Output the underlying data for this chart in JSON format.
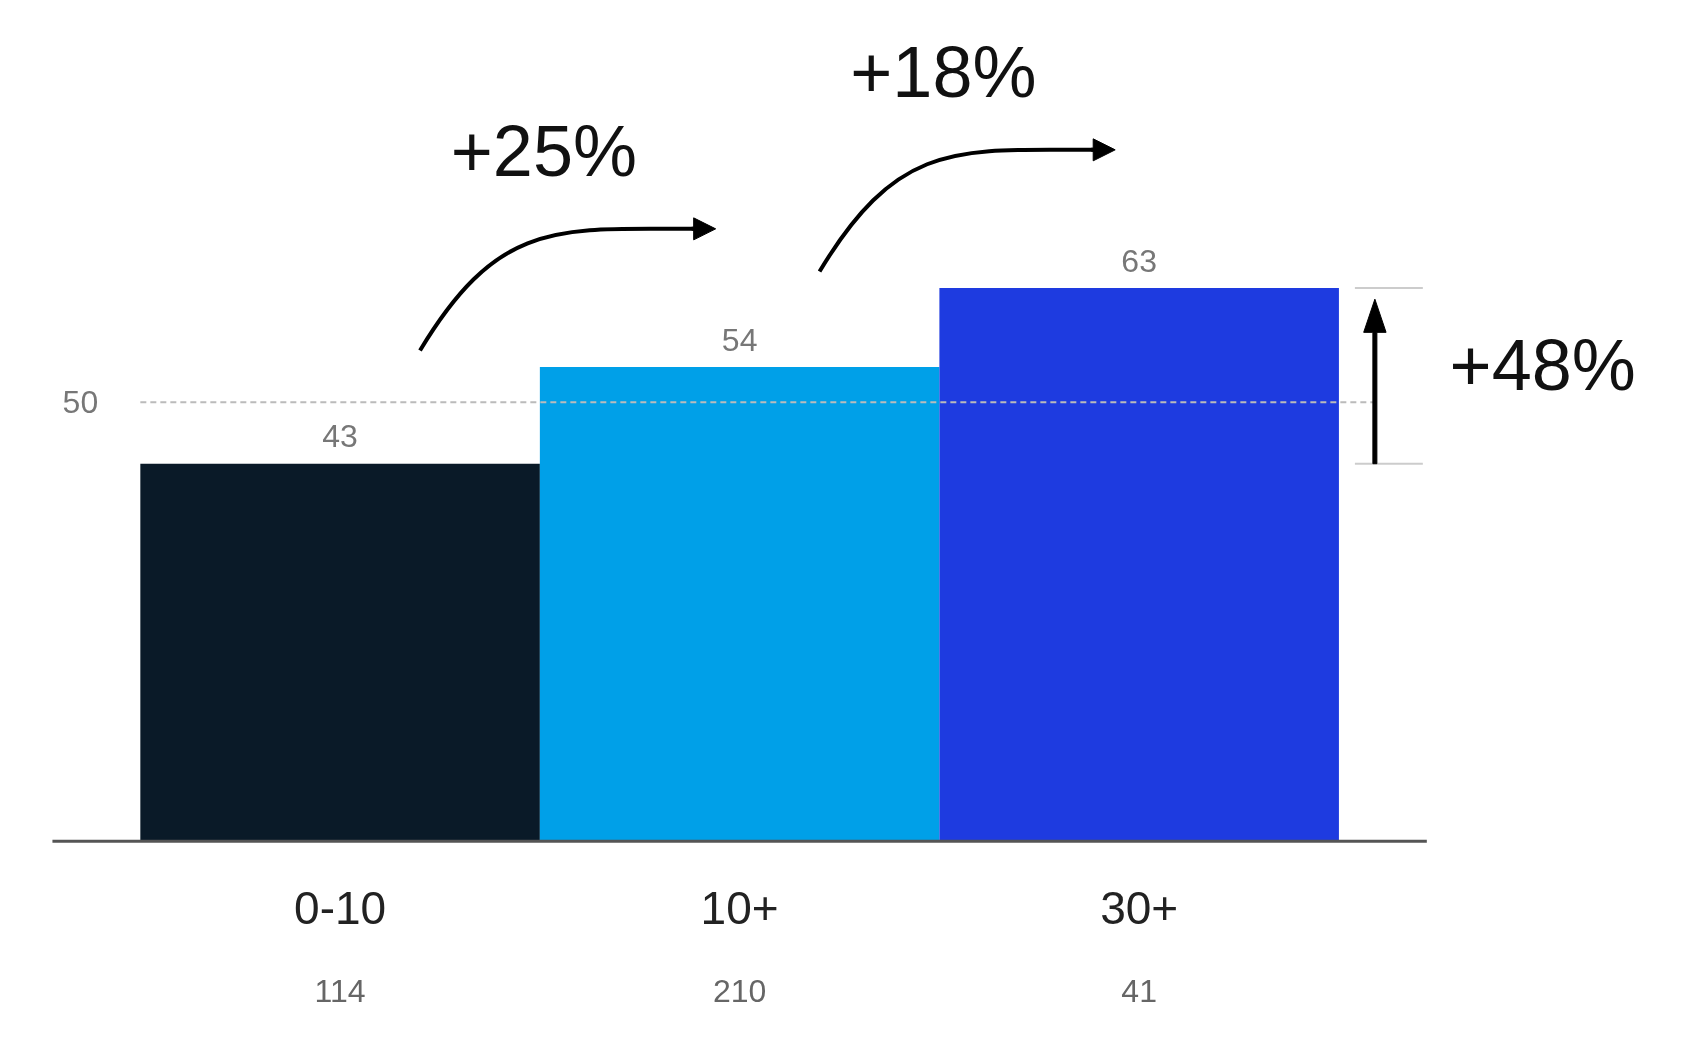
{
  "chart_data": {
    "type": "bar",
    "categories": [
      "0-10",
      "10+",
      "30+"
    ],
    "values": [
      43,
      54,
      63
    ],
    "colors": [
      "#0a1a28",
      "#00a0e8",
      "#1e3be0"
    ],
    "data_labels": true,
    "ref_lines": [
      {
        "axis": "y",
        "value": 50,
        "label": "50",
        "color": "#bbbbbb",
        "line_style": "dashed"
      }
    ],
    "annotations": [
      "+25%",
      "+18%",
      "+48%",
      "114",
      "210",
      "41"
    ]
  }
}
